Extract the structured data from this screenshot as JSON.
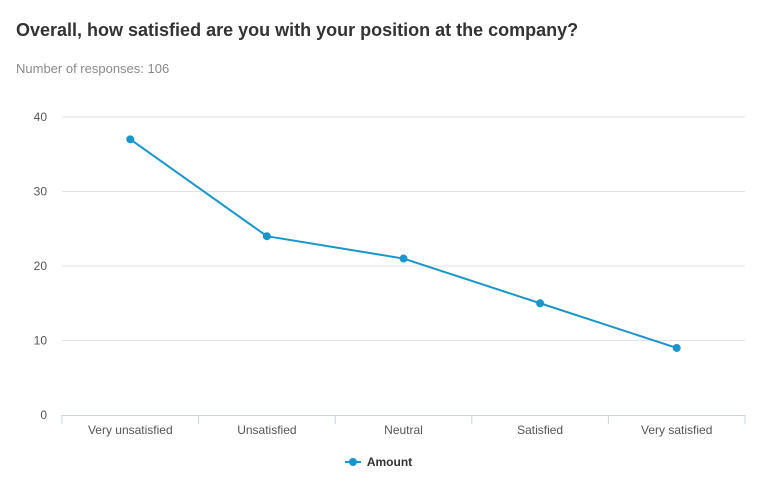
{
  "header": {
    "title": "Overall, how satisfied are you with your position at the company?",
    "responses_label": "Number of responses: 106"
  },
  "colors": {
    "series": "#1a95c9",
    "grid": "#e1e1e1",
    "axis": "#c8d4e0"
  },
  "chart_data": {
    "type": "line",
    "categories": [
      "Very unsatisfied",
      "Unsatisfied",
      "Neutral",
      "Satisfied",
      "Very satisfied"
    ],
    "series": [
      {
        "name": "Amount",
        "values": [
          37,
          24,
          21,
          15,
          9
        ]
      }
    ],
    "yticks": [
      "0",
      "10",
      "20",
      "30",
      "40"
    ],
    "ylim": [
      0,
      40
    ],
    "grid": true,
    "legend": "bottom-center"
  }
}
